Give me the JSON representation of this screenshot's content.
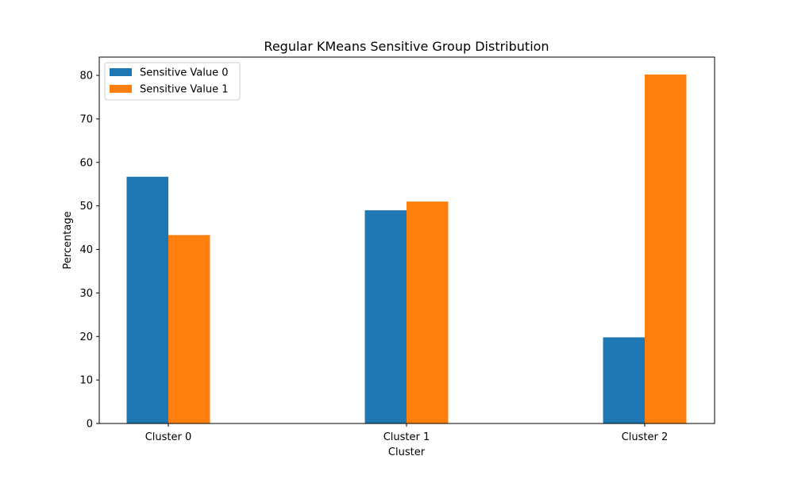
{
  "chart_data": {
    "type": "bar",
    "title": "Regular KMeans Sensitive Group Distribution",
    "xlabel": "Cluster",
    "ylabel": "Percentage",
    "categories": [
      "Cluster 0",
      "Cluster 1",
      "Cluster 2"
    ],
    "series": [
      {
        "name": "Sensitive Value 0",
        "color": "#1f77b4",
        "values": [
          56.7,
          49.0,
          19.8
        ]
      },
      {
        "name": "Sensitive Value 1",
        "color": "#ff7f0e",
        "values": [
          43.3,
          51.0,
          80.2
        ]
      }
    ],
    "ylim": [
      0,
      84.2
    ],
    "yticks": [
      0,
      10,
      20,
      30,
      40,
      50,
      60,
      70,
      80
    ],
    "grid": false,
    "legend_position": "top-left"
  }
}
